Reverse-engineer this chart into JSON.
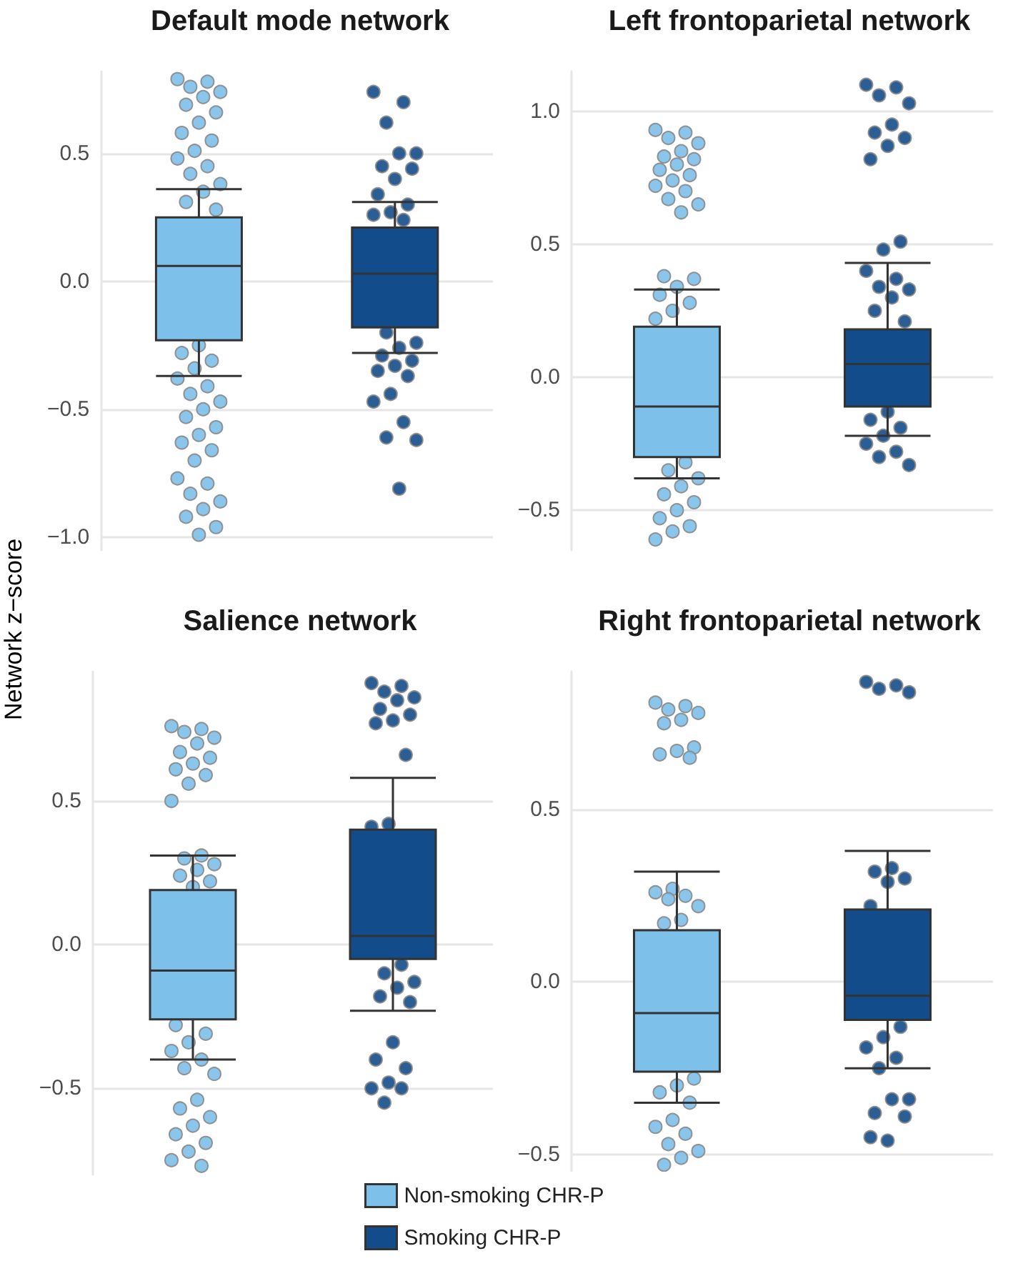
{
  "chart_data": [
    {
      "type": "box",
      "title": "Default mode network",
      "ylabel": "Network z−score",
      "categories": [
        null,
        null
      ],
      "ylim": [
        -1.05,
        0.82
      ],
      "yticks": [
        {
          "value": -1.0,
          "label": "−1.0"
        },
        {
          "value": -0.5,
          "label": "−0.5"
        },
        {
          "value": 0,
          "label": "0.0"
        },
        {
          "value": 0.5,
          "label": "0.5"
        }
      ],
      "grid": "y",
      "tick_labels": "y",
      "legend": false,
      "marker": "circle",
      "series": [
        {
          "color": "#7dc0ea",
          "boxes": [
            {
              "low": -0.37,
              "q1": -0.23,
              "median": 0.06,
              "q3": 0.25,
              "high": 0.36,
              "outliers": [
                0.79,
                0.78,
                0.76,
                0.74,
                0.72,
                0.69,
                0.66,
                0.62,
                0.58,
                0.55,
                0.51,
                0.48,
                0.45,
                0.42,
                0.38,
                0.35,
                0.31,
                0.28,
                -0.25,
                -0.28,
                -0.31,
                -0.34,
                -0.38,
                -0.41,
                -0.44,
                -0.47,
                -0.5,
                -0.53,
                -0.57,
                -0.6,
                -0.63,
                -0.66,
                -0.7,
                -0.77,
                -0.79,
                -0.83,
                -0.86,
                -0.89,
                -0.92,
                -0.96,
                -0.99
              ]
            },
            null
          ]
        },
        {
          "color": "#134c8a",
          "boxes": [
            null,
            {
              "low": -0.28,
              "q1": -0.18,
              "median": 0.03,
              "q3": 0.21,
              "high": 0.31,
              "outliers": [
                0.74,
                0.7,
                0.62,
                0.5,
                0.5,
                0.45,
                0.44,
                0.4,
                0.34,
                0.3,
                0.27,
                0.26,
                0.24,
                -0.2,
                -0.24,
                -0.26,
                -0.29,
                -0.31,
                -0.33,
                -0.35,
                -0.37,
                -0.44,
                -0.47,
                -0.55,
                -0.61,
                -0.62,
                -0.81
              ]
            }
          ]
        }
      ]
    },
    {
      "type": "box",
      "title": "Left frontoparietal network",
      "categories": [
        null,
        null
      ],
      "ylim": [
        -0.65,
        1.15
      ],
      "yticks": [
        {
          "value": -0.5,
          "label": "−0.5"
        },
        {
          "value": 0,
          "label": "0.0"
        },
        {
          "value": 0.5,
          "label": "0.5"
        },
        {
          "value": 1,
          "label": "1.0"
        }
      ],
      "grid": "y",
      "tick_labels": "y",
      "legend": false,
      "marker": "circle",
      "series": [
        {
          "color": "#7dc0ea",
          "boxes": [
            {
              "low": -0.38,
              "q1": -0.3,
              "median": -0.11,
              "q3": 0.19,
              "high": 0.33,
              "outliers": [
                0.93,
                0.92,
                0.9,
                0.88,
                0.85,
                0.83,
                0.82,
                0.8,
                0.78,
                0.76,
                0.74,
                0.72,
                0.7,
                0.67,
                0.65,
                0.62,
                0.38,
                0.37,
                0.34,
                0.31,
                0.28,
                0.25,
                0.22,
                -0.32,
                -0.35,
                -0.38,
                -0.41,
                -0.44,
                -0.47,
                -0.5,
                -0.53,
                -0.56,
                -0.58,
                -0.61
              ]
            },
            null
          ]
        },
        {
          "color": "#134c8a",
          "boxes": [
            null,
            {
              "low": -0.22,
              "q1": -0.11,
              "median": 0.05,
              "q3": 0.18,
              "high": 0.43,
              "outliers": [
                1.1,
                1.09,
                1.06,
                1.03,
                0.95,
                0.92,
                0.9,
                0.87,
                0.82,
                0.51,
                0.48,
                0.4,
                0.37,
                0.34,
                0.33,
                0.3,
                0.25,
                0.21,
                -0.13,
                -0.16,
                -0.19,
                -0.22,
                -0.25,
                -0.28,
                -0.3,
                -0.33
              ]
            }
          ]
        }
      ]
    },
    {
      "type": "box",
      "title": "Salience network",
      "categories": [
        null,
        null
      ],
      "ylim": [
        -0.8,
        0.95
      ],
      "yticks": [
        {
          "value": -0.5,
          "label": "−0.5"
        },
        {
          "value": 0,
          "label": "0.0"
        },
        {
          "value": 0.5,
          "label": "0.5"
        }
      ],
      "grid": "y",
      "tick_labels": "y",
      "legend": "bottom",
      "marker": "circle",
      "series": [
        {
          "name": "Non-smoking CHR-P",
          "color": "#7dc0ea",
          "boxes": [
            {
              "low": -0.4,
              "q1": -0.26,
              "median": -0.09,
              "q3": 0.19,
              "high": 0.31,
              "outliers": [
                0.76,
                0.75,
                0.74,
                0.72,
                0.7,
                0.67,
                0.65,
                0.63,
                0.61,
                0.59,
                0.56,
                0.5,
                0.31,
                0.3,
                0.28,
                0.26,
                0.24,
                0.22,
                0.2,
                -0.28,
                -0.31,
                -0.34,
                -0.37,
                -0.4,
                -0.43,
                -0.45,
                -0.54,
                -0.57,
                -0.6,
                -0.63,
                -0.66,
                -0.69,
                -0.72,
                -0.75,
                -0.77
              ]
            },
            null
          ]
        },
        {
          "name": "Smoking CHR-P",
          "color": "#134c8a",
          "boxes": [
            null,
            {
              "low": -0.23,
              "q1": -0.05,
              "median": 0.03,
              "q3": 0.4,
              "high": 0.58,
              "outliers": [
                0.91,
                0.9,
                0.88,
                0.86,
                0.85,
                0.82,
                0.8,
                0.78,
                0.77,
                0.66,
                0.42,
                0.41,
                -0.07,
                -0.1,
                -0.13,
                -0.15,
                -0.18,
                -0.2,
                -0.34,
                -0.4,
                -0.43,
                -0.48,
                -0.5,
                -0.5,
                -0.55
              ]
            }
          ]
        }
      ]
    },
    {
      "type": "box",
      "title": "Right frontoparietal network",
      "categories": [
        null,
        null
      ],
      "ylim": [
        -0.55,
        0.9
      ],
      "yticks": [
        {
          "value": -0.5,
          "label": "−0.5"
        },
        {
          "value": 0,
          "label": "0.0"
        },
        {
          "value": 0.5,
          "label": "0.5"
        }
      ],
      "grid": "y",
      "tick_labels": "y",
      "legend": false,
      "marker": "circle",
      "series": [
        {
          "color": "#7dc0ea",
          "boxes": [
            {
              "low": -0.35,
              "q1": -0.26,
              "median": -0.09,
              "q3": 0.15,
              "high": 0.32,
              "outliers": [
                0.81,
                0.8,
                0.79,
                0.78,
                0.76,
                0.75,
                0.68,
                0.67,
                0.66,
                0.65,
                0.27,
                0.26,
                0.25,
                0.24,
                0.22,
                0.18,
                0.17,
                -0.28,
                -0.3,
                -0.32,
                -0.35,
                -0.4,
                -0.42,
                -0.44,
                -0.47,
                -0.49,
                -0.51,
                -0.53
              ]
            },
            null
          ]
        },
        {
          "color": "#134c8a",
          "boxes": [
            null,
            {
              "low": -0.25,
              "q1": -0.11,
              "median": -0.04,
              "q3": 0.21,
              "high": 0.38,
              "outliers": [
                0.87,
                0.86,
                0.85,
                0.84,
                0.33,
                0.32,
                0.3,
                0.29,
                0.22,
                -0.13,
                -0.16,
                -0.19,
                -0.22,
                -0.25,
                -0.34,
                -0.34,
                -0.38,
                -0.39,
                -0.46,
                -0.45
              ]
            }
          ]
        }
      ]
    }
  ]
}
